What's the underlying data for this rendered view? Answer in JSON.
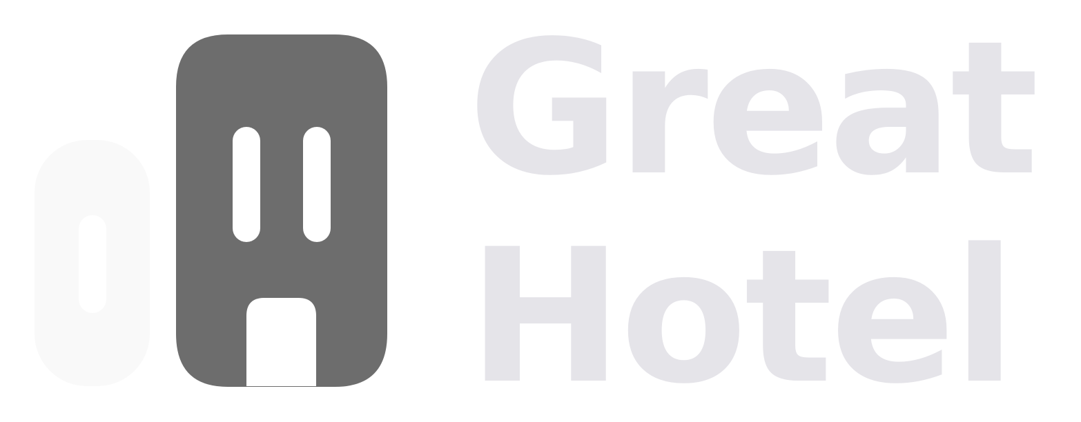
{
  "brand": {
    "name_line_1": "Great",
    "name_line_2": "Hotel",
    "colors": {
      "mark_primary": "#6d6d6d",
      "mark_secondary": "#f9f9f9",
      "wordmark_text": "#e5e4e9",
      "background": "#ffffff"
    },
    "icon": "hotel-door-logo-icon"
  }
}
